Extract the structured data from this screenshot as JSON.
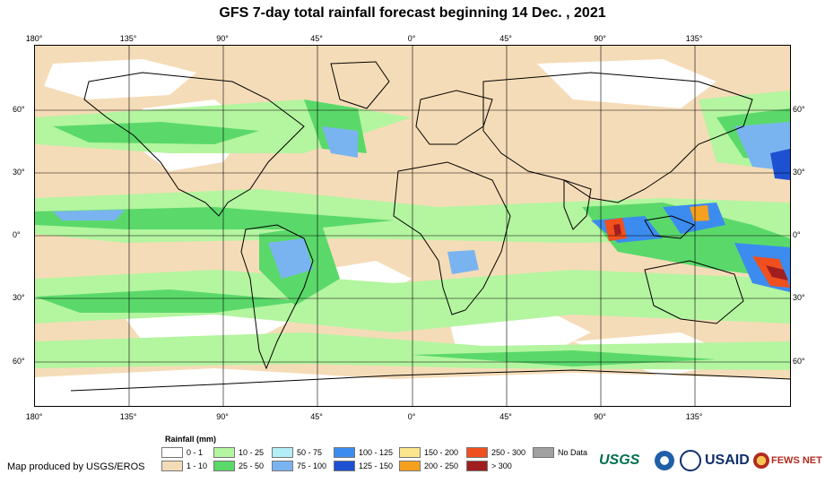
{
  "title": "GFS 7-day total rainfall forecast beginning 14 Dec. , 2021",
  "longitude_ticks": [
    "180°",
    "135°",
    "90°",
    "45°",
    "0°",
    "45°",
    "90°",
    "135°"
  ],
  "latitude_ticks": [
    "60°",
    "30°",
    "0°",
    "30°",
    "60°"
  ],
  "legend": {
    "title": "Rainfall (mm)",
    "items": [
      {
        "label": "0 - 1",
        "color": "#ffffff"
      },
      {
        "label": "1 - 10",
        "color": "#f5dcb8"
      },
      {
        "label": "10 - 25",
        "color": "#b4f5a0"
      },
      {
        "label": "25 - 50",
        "color": "#5ad96a"
      },
      {
        "label": "50 - 75",
        "color": "#b4eef7"
      },
      {
        "label": "75 - 100",
        "color": "#7ab4f0"
      },
      {
        "label": "100 - 125",
        "color": "#3c8cf0"
      },
      {
        "label": "125 - 150",
        "color": "#1e50d2"
      },
      {
        "label": "150 - 200",
        "color": "#fae68c"
      },
      {
        "label": "200 - 250",
        "color": "#f5a01e"
      },
      {
        "label": "250 - 300",
        "color": "#f0501e"
      },
      {
        "label": "> 300",
        "color": "#a01e1e"
      },
      {
        "label": "No Data",
        "color": "#a0a0a0"
      }
    ]
  },
  "producer": "Map produced by USGS/EROS",
  "logos": {
    "usgs": "USGS",
    "usaid": "USAID",
    "fews": "FEWS NET"
  }
}
